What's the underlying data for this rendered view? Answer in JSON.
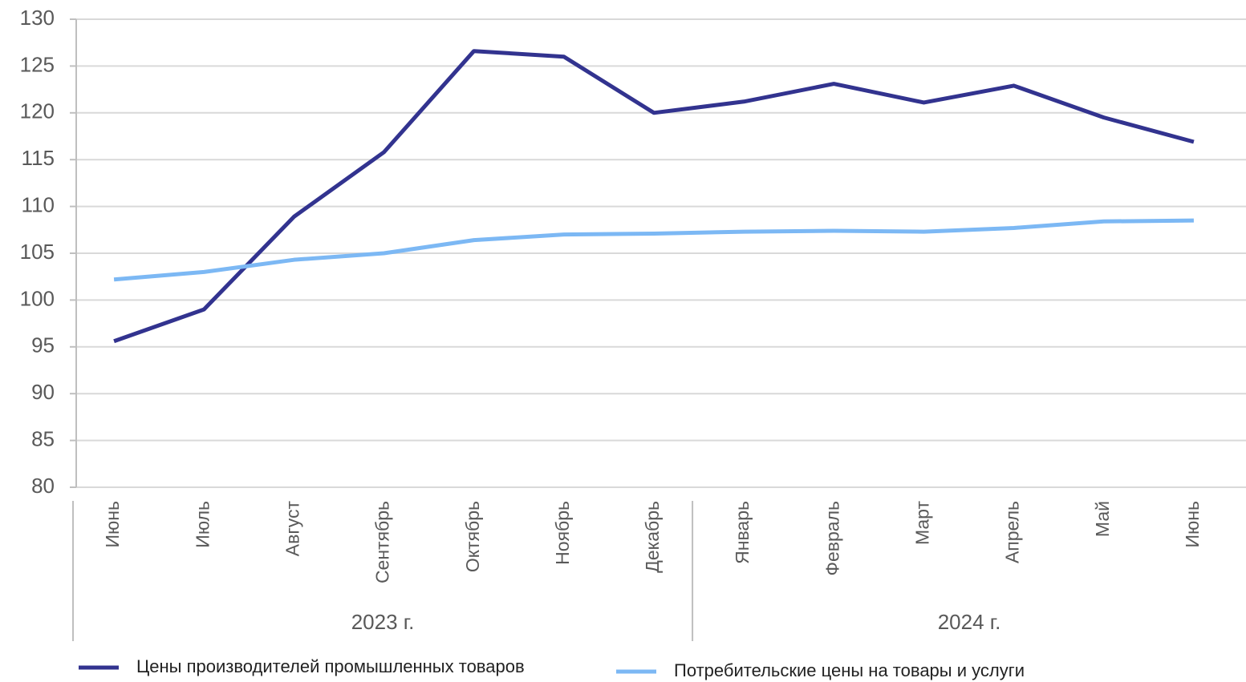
{
  "chart_data": {
    "type": "line",
    "categories": [
      "Июнь",
      "Июль",
      "Август",
      "Сентябрь",
      "Октябрь",
      "Ноябрь",
      "Декабрь",
      "Январь",
      "Февраль",
      "Март",
      "Апрель",
      "Май",
      "Июнь"
    ],
    "x_groups": [
      {
        "label": "2023 г.",
        "size": 7
      },
      {
        "label": "2024 г.",
        "size": 6
      }
    ],
    "series": [
      {
        "name": "Цены производителей промышленных товаров",
        "color": "#32338f",
        "values": [
          95.6,
          99.0,
          108.9,
          115.8,
          126.6,
          126.0,
          120.0,
          121.2,
          123.1,
          121.1,
          122.9,
          119.5,
          116.9
        ]
      },
      {
        "name": "Потребительские цены на товары и услуги",
        "color": "#7cb8f4",
        "values": [
          102.2,
          103.0,
          104.3,
          105.0,
          106.4,
          107.0,
          107.1,
          107.3,
          107.4,
          107.3,
          107.7,
          108.4,
          108.5
        ]
      }
    ],
    "ylim": [
      80,
      130
    ],
    "yticks": [
      80,
      85,
      90,
      95,
      100,
      105,
      110,
      115,
      120,
      125,
      130
    ],
    "grid": true,
    "legend": "bottom"
  }
}
